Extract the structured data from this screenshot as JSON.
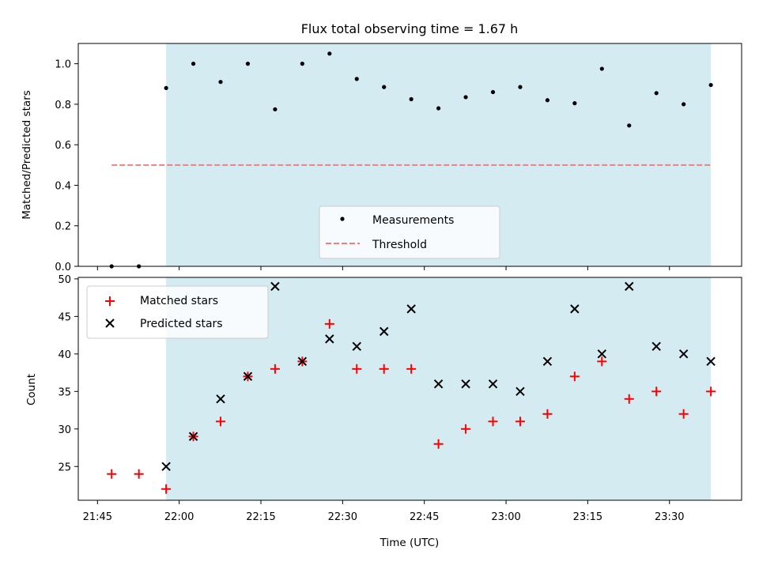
{
  "chart_data": {
    "title": "Flux total observing time = 1.67 h",
    "colors": {
      "observing_window": "#add8e6",
      "threshold": "#f08080",
      "matched": "#ff0000",
      "predicted": "#000000",
      "measurement": "#000000"
    },
    "time_start": "21:45",
    "observing_window": {
      "start": "21:57.6",
      "end": "23:37.6"
    },
    "x_ticks": [
      "21:45",
      "22:00",
      "22:15",
      "22:30",
      "22:45",
      "23:00",
      "23:15",
      "23:30"
    ],
    "xlabel": "Time (UTC)",
    "panels": [
      {
        "type": "scatter",
        "ylabel": "Matched/Predicted stars",
        "ylim": [
          0,
          1.1
        ],
        "y_ticks": [
          "0.0",
          "0.2",
          "0.4",
          "0.6",
          "0.8",
          "1.0"
        ],
        "legend": {
          "position": "lower-center",
          "entries": [
            "Measurements",
            "Threshold"
          ]
        },
        "series": [
          {
            "name": "Measurements",
            "marker": "dot",
            "x": [
              "21:47.6",
              "21:52.6",
              "21:57.6",
              "22:02.6",
              "22:07.6",
              "22:12.6",
              "22:17.6",
              "22:22.6",
              "22:27.6",
              "22:32.6",
              "22:37.6",
              "22:42.6",
              "22:47.6",
              "22:52.6",
              "22:57.6",
              "23:02.6",
              "23:07.6",
              "23:12.6",
              "23:17.6",
              "23:22.6",
              "23:27.6",
              "23:32.6",
              "23:37.6"
            ],
            "y": [
              0,
              0,
              0.88,
              1.0,
              0.91,
              1.0,
              0.775,
              1.0,
              1.05,
              0.925,
              0.885,
              0.825,
              0.78,
              0.835,
              0.86,
              0.885,
              0.82,
              0.805,
              0.975,
              0.695,
              0.855,
              0.8,
              0.895
            ]
          },
          {
            "name": "Threshold",
            "style": "dashed-line",
            "x": [
              "21:47.6",
              "23:37.6"
            ],
            "y": [
              0.5,
              0.5
            ]
          }
        ]
      },
      {
        "type": "scatter",
        "ylabel": "Count",
        "ylim": [
          20.5,
          50.2
        ],
        "y_ticks": [
          "25",
          "30",
          "35",
          "40",
          "45",
          "50"
        ],
        "legend": {
          "position": "top-left",
          "entries": [
            "Matched stars",
            "Predicted stars"
          ]
        },
        "series": [
          {
            "name": "Matched stars",
            "marker": "plus",
            "x": [
              "21:47.6",
              "21:52.6",
              "21:57.6",
              "22:02.6",
              "22:07.6",
              "22:12.6",
              "22:17.6",
              "22:22.6",
              "22:27.6",
              "22:32.6",
              "22:37.6",
              "22:42.6",
              "22:47.6",
              "22:52.6",
              "22:57.6",
              "23:02.6",
              "23:07.6",
              "23:12.6",
              "23:17.6",
              "23:22.6",
              "23:27.6",
              "23:32.6",
              "23:37.6"
            ],
            "y": [
              24,
              24,
              22,
              29,
              31,
              37,
              38,
              39,
              44,
              38,
              38,
              38,
              28,
              30,
              31,
              31,
              32,
              37,
              39,
              34,
              35,
              32,
              35
            ]
          },
          {
            "name": "Predicted stars",
            "marker": "x",
            "x": [
              "21:57.6",
              "22:02.6",
              "22:07.6",
              "22:12.6",
              "22:17.6",
              "22:22.6",
              "22:27.6",
              "22:32.6",
              "22:37.6",
              "22:42.6",
              "22:47.6",
              "22:52.6",
              "22:57.6",
              "23:02.6",
              "23:07.6",
              "23:12.6",
              "23:17.6",
              "23:22.6",
              "23:27.6",
              "23:32.6",
              "23:37.6"
            ],
            "y": [
              25,
              29,
              34,
              37,
              49,
              39,
              42,
              41,
              43,
              46,
              36,
              36,
              36,
              35,
              39,
              46,
              40,
              49,
              41,
              40,
              39
            ]
          }
        ]
      }
    ]
  }
}
